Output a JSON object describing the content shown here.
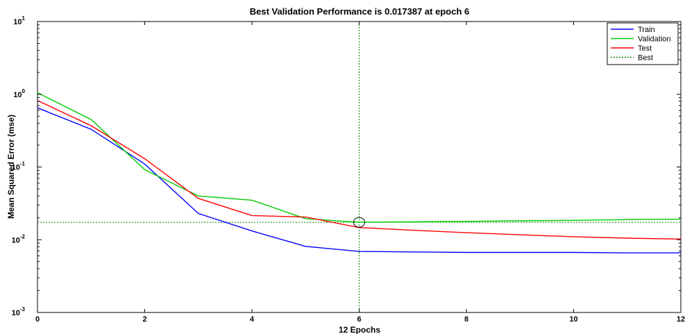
{
  "chart_data": {
    "type": "line",
    "title": "Best Validation Performance is 0.017387 at epoch 6",
    "xlabel": "12 Epochs",
    "ylabel": "Mean Squared Error  (mse)",
    "xlim": [
      0,
      12
    ],
    "ylim": [
      0.001,
      10
    ],
    "yscale": "log",
    "x_ticks": [
      "0",
      "2",
      "4",
      "6",
      "8",
      "10",
      "12"
    ],
    "y_ticks": [
      {
        "base": "10",
        "exp": "-3"
      },
      {
        "base": "10",
        "exp": "-2"
      },
      {
        "base": "10",
        "exp": "-1"
      },
      {
        "base": "10",
        "exp": "0"
      },
      {
        "base": "10",
        "exp": "1"
      }
    ],
    "x": [
      0,
      1,
      2,
      3,
      4,
      5,
      6,
      7,
      8,
      9,
      10,
      11,
      12
    ],
    "series": [
      {
        "name": "Train",
        "color": "#0000ff",
        "values": [
          0.65,
          0.33,
          0.11,
          0.023,
          0.0132,
          0.0081,
          0.0069,
          0.0068,
          0.0067,
          0.0067,
          0.0067,
          0.0066,
          0.0066
        ]
      },
      {
        "name": "Validation",
        "color": "#00cc00",
        "values": [
          1.05,
          0.45,
          0.092,
          0.04,
          0.035,
          0.0195,
          0.017387,
          0.0176,
          0.0179,
          0.0182,
          0.0185,
          0.0189,
          0.0192
        ]
      },
      {
        "name": "Test",
        "color": "#ff0000",
        "values": [
          0.82,
          0.37,
          0.13,
          0.037,
          0.0215,
          0.0205,
          0.0147,
          0.0135,
          0.0125,
          0.0117,
          0.011,
          0.0105,
          0.0102
        ]
      }
    ],
    "best": {
      "name": "Best",
      "epoch": 6,
      "value": 0.017387,
      "color": "#008000"
    },
    "legend_position": "top-right"
  }
}
